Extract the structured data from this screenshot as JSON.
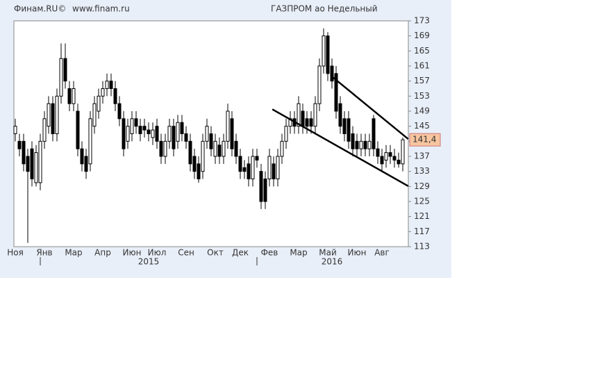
{
  "chart_data": {
    "type": "candlestick",
    "source": "Финам.RU©",
    "site": "www.finam.ru",
    "title": "ГАЗПРОМ ао Недельный",
    "categories": [
      "Ноя",
      null,
      null,
      null,
      null,
      null,
      null,
      "Янв",
      null,
      null,
      null,
      null,
      null,
      null,
      "Мар",
      null,
      null,
      null,
      null,
      null,
      null,
      "Апр",
      null,
      null,
      null,
      null,
      null,
      null,
      "Июн",
      null,
      null,
      null,
      null,
      null,
      "Июл",
      null,
      null,
      null,
      null,
      null,
      null,
      "Сен",
      null,
      null,
      null,
      null,
      null,
      null,
      "Окт",
      null,
      null,
      null,
      null,
      null,
      "Дек",
      null,
      null,
      null,
      null,
      null,
      null,
      "Фев",
      null,
      null,
      null,
      null,
      null,
      null,
      "Мар",
      null,
      null,
      null,
      null,
      null,
      null,
      "Май",
      null,
      null,
      null,
      null,
      null,
      null,
      "Июн",
      null,
      null,
      null,
      null,
      null,
      "Авг",
      null,
      null,
      null,
      null,
      null
    ],
    "years": [
      null,
      null,
      null,
      null,
      null,
      null,
      null,
      null,
      null,
      null,
      null,
      null,
      null,
      null,
      null,
      null,
      null,
      null,
      null,
      null,
      null,
      null,
      null,
      null,
      null,
      null,
      null,
      null,
      null,
      null,
      null,
      null,
      "2015",
      null,
      null,
      null,
      null,
      null,
      null,
      null,
      null,
      null,
      null,
      null,
      null,
      null,
      null,
      null,
      null,
      null,
      null,
      null,
      null,
      null,
      null,
      null,
      null,
      null,
      null,
      null,
      null,
      null,
      null,
      null,
      null,
      null,
      null,
      null,
      null,
      null,
      null,
      null,
      null,
      null,
      null,
      null,
      "2016",
      null,
      null,
      null,
      null,
      null,
      null,
      null,
      null,
      null,
      null,
      null,
      null,
      null,
      null,
      null,
      null,
      null
    ],
    "open": [
      143,
      141,
      141,
      137,
      139,
      130,
      130,
      141,
      145,
      151,
      143,
      153,
      163,
      155,
      151,
      149,
      139,
      137,
      135,
      145,
      149,
      153,
      155,
      157,
      155,
      151,
      147,
      141,
      143,
      147,
      145,
      145,
      144,
      142,
      145,
      141,
      137,
      141,
      145,
      141,
      146,
      143,
      141,
      137,
      135,
      133,
      141,
      143,
      137,
      140,
      137,
      141,
      147,
      141,
      137,
      134,
      135,
      131,
      137,
      133,
      131,
      131,
      135,
      131,
      137,
      141,
      145,
      147,
      145,
      149,
      147,
      147,
      145,
      151,
      161,
      169,
      161,
      159,
      151,
      147,
      147,
      143,
      141,
      139,
      141,
      139,
      147,
      139,
      137,
      136,
      138,
      137,
      136,
      135
    ],
    "high": [
      147,
      143,
      143,
      139,
      141,
      140,
      143,
      149,
      153,
      153,
      155,
      167,
      167,
      157,
      157,
      151,
      141,
      139,
      149,
      153,
      155,
      157,
      159,
      159,
      157,
      153,
      149,
      147,
      149,
      149,
      147,
      147,
      146,
      146,
      147,
      143,
      143,
      147,
      147,
      148,
      148,
      145,
      143,
      139,
      137,
      143,
      147,
      145,
      143,
      142,
      143,
      151,
      149,
      143,
      139,
      136,
      137,
      139,
      139,
      135,
      133,
      139,
      137,
      139,
      143,
      147,
      149,
      149,
      153,
      151,
      149,
      149,
      153,
      163,
      171,
      170,
      163,
      161,
      153,
      149,
      149,
      145,
      143,
      143,
      143,
      143,
      148,
      141,
      139,
      140,
      140,
      139,
      138,
      142
    ],
    "low": [
      141,
      137,
      133,
      114,
      129,
      129,
      128,
      139,
      143,
      141,
      141,
      151,
      155,
      149,
      149,
      137,
      133,
      131,
      133,
      143,
      147,
      151,
      153,
      153,
      149,
      145,
      137,
      139,
      141,
      143,
      141,
      142,
      141,
      140,
      139,
      135,
      135,
      139,
      137,
      139,
      141,
      139,
      133,
      131,
      130,
      131,
      139,
      137,
      135,
      135,
      135,
      139,
      137,
      135,
      131,
      131,
      129,
      129,
      134,
      123,
      123,
      129,
      129,
      129,
      135,
      139,
      143,
      143,
      143,
      143,
      143,
      143,
      143,
      149,
      159,
      157,
      155,
      147,
      143,
      141,
      139,
      137,
      137,
      137,
      137,
      137,
      137,
      135,
      133,
      134,
      135,
      134,
      134,
      133
    ],
    "close": [
      145,
      139,
      135,
      133,
      131,
      138,
      141,
      147,
      151,
      143,
      153,
      163,
      157,
      151,
      155,
      139,
      135,
      133,
      147,
      151,
      153,
      155,
      157,
      155,
      151,
      147,
      139,
      145,
      147,
      145,
      143,
      144,
      143,
      144,
      141,
      137,
      141,
      145,
      139,
      146,
      143,
      141,
      135,
      133,
      131,
      141,
      145,
      139,
      141,
      137,
      141,
      149,
      139,
      137,
      133,
      133,
      131,
      137,
      136,
      125,
      125,
      137,
      131,
      137,
      141,
      145,
      147,
      145,
      151,
      145,
      145,
      145,
      151,
      161,
      169,
      159,
      157,
      149,
      145,
      143,
      141,
      139,
      139,
      141,
      139,
      141,
      139,
      137,
      135,
      138,
      137,
      136,
      135,
      141.4
    ],
    "last_price": {
      "value": 141.4,
      "label": "141,4"
    },
    "trendlines": [
      {
        "start": [
          61.7,
          149.5
        ],
        "end": [
          94.3,
          129.1
        ]
      },
      {
        "start": [
          76,
          158.2
        ],
        "end": [
          94.3,
          141.6
        ]
      }
    ],
    "ylim": [
      113,
      173
    ],
    "yticks": [
      113,
      117,
      121,
      125,
      129,
      133,
      137,
      141,
      145,
      149,
      153,
      157,
      161,
      165,
      169,
      173
    ],
    "grid": false,
    "up_color": "#ffffff",
    "down_color": "#000000",
    "label_color": "#f7c59f"
  }
}
